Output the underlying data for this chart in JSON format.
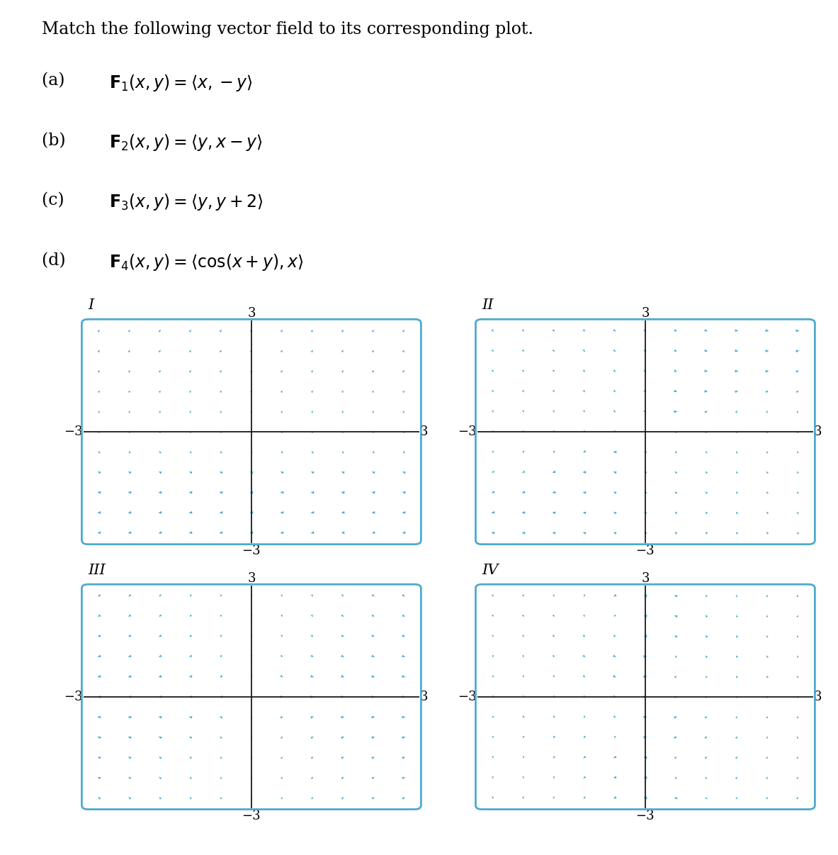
{
  "title_text": "Match the following vector field to its corresponding plot.",
  "eq_parts": [
    [
      "(a)  ",
      "\\mathbf{F}_1(x, y) = \\langle x, -y \\rangle"
    ],
    [
      "(b)  ",
      "\\mathbf{F}_2(x, y) = \\langle y, x - y \\rangle"
    ],
    [
      "(c)  ",
      "\\mathbf{F}_3(x, y) = \\langle y, y + 2 \\rangle"
    ],
    [
      "(d)  ",
      "\\mathbf{F}_4(x, y) = \\langle \\cos(x + y), x \\rangle"
    ]
  ],
  "plot_labels": [
    "I",
    "II",
    "III",
    "IV"
  ],
  "arrow_color": "#4eaacc",
  "axis_color": "#1a1a1a",
  "border_color": "#4eaacc",
  "background_color": "#ffffff",
  "xlim": [
    -3,
    3
  ],
  "ylim": [
    -3,
    3
  ],
  "n_points": 11,
  "title_fontsize": 17,
  "label_fontsize": 17,
  "tick_fontsize": 13,
  "roman_fontsize": 15
}
